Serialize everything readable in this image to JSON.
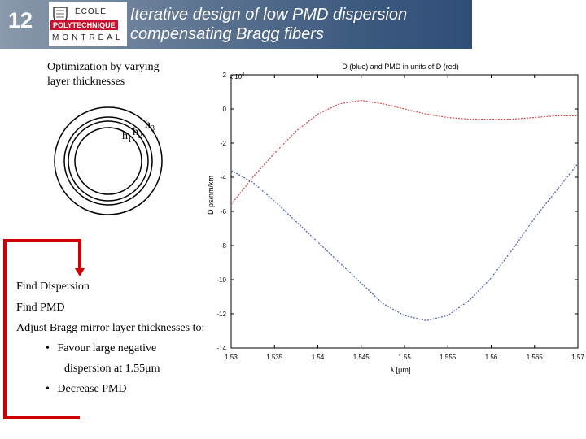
{
  "header": {
    "slide_number": "12",
    "title_line1": "Iterative design of low PMD dispersion",
    "title_line2": "compensating Bragg fibers",
    "logo": {
      "line1": "ÉCOLE",
      "line2": "POLYTECHNIQUE",
      "line3": "MONTRÉAL"
    }
  },
  "left": {
    "optimization_line1": "Optimization by varying",
    "optimization_line2": "layer thicknesses",
    "h1": "h",
    "h1_sub": "1",
    "h2": "h",
    "h2_sub": "2",
    "h3": "h",
    "h3_sub": "3"
  },
  "steps": {
    "find_dispersion": "Find Dispersion",
    "find_pmd": "Find PMD",
    "adjust": "Adjust Bragg mirror layer thicknesses to:",
    "bullet1_line1": "Favour large negative",
    "bullet1_line2": "dispersion at 1.55μm",
    "bullet2": "Decrease PMD",
    "bullet_char": "•"
  },
  "colors": {
    "blue": "#4b5fb0",
    "red": "#d24b4b",
    "arrow": "#cc0000"
  },
  "chart_data": {
    "type": "line",
    "title": "D (blue) and PMD in units of D (red)",
    "xlabel": "λ [μm]",
    "ylabel": "D  ps/nm/km",
    "exponent_label": "x 10",
    "exponent_power": "4",
    "xlim": [
      1.53,
      1.57
    ],
    "ylim": [
      -14,
      2
    ],
    "x_ticks": [
      "1.53",
      "1.535",
      "1.54",
      "1.545",
      "1.55",
      "1.555",
      "1.56",
      "1.565",
      "1.57"
    ],
    "y_ticks": [
      "2",
      "0",
      "-2",
      "-4",
      "-6",
      "-8",
      "-10",
      "-12",
      "-14"
    ],
    "series": [
      {
        "name": "D",
        "color": "#4b5fb0",
        "x": [
          1.53,
          1.5325,
          1.535,
          1.5375,
          1.54,
          1.5425,
          1.545,
          1.5475,
          1.55,
          1.5525,
          1.555,
          1.5575,
          1.56,
          1.5625,
          1.565,
          1.5675,
          1.57
        ],
        "y": [
          -3.6,
          -4.3,
          -5.4,
          -6.6,
          -7.8,
          -9.0,
          -10.2,
          -11.4,
          -12.1,
          -12.4,
          -12.1,
          -11.2,
          -9.9,
          -8.2,
          -6.4,
          -4.8,
          -3.2
        ]
      },
      {
        "name": "PMD",
        "color": "#d24b4b",
        "x": [
          1.53,
          1.5325,
          1.535,
          1.5375,
          1.54,
          1.5425,
          1.545,
          1.5475,
          1.55,
          1.5525,
          1.555,
          1.5575,
          1.56,
          1.5625,
          1.565,
          1.5675,
          1.57
        ],
        "y": [
          -5.6,
          -4.0,
          -2.6,
          -1.3,
          -0.3,
          0.3,
          0.5,
          0.3,
          0.0,
          -0.3,
          -0.5,
          -0.6,
          -0.6,
          -0.6,
          -0.5,
          -0.4,
          -0.4
        ]
      }
    ]
  }
}
